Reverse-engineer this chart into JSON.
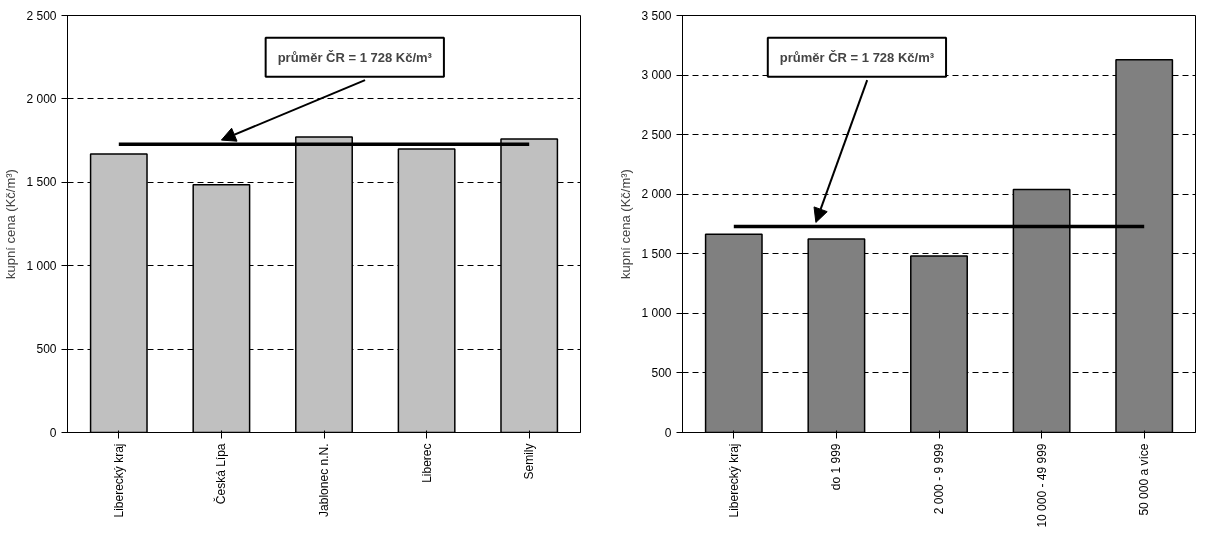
{
  "chart_data": [
    {
      "type": "bar",
      "categories": [
        "Liberecký kraj",
        "Česká Lípa",
        "Jablonec n.N.",
        "Liberec",
        "Semily"
      ],
      "values": [
        1669,
        1485,
        1772,
        1700,
        1760
      ],
      "color": "#c0c0c0",
      "ylabel": "kupní cena (Kč/m³)",
      "ylim": [
        0,
        2500
      ],
      "yticks": [
        0,
        500,
        {
          "value": 1000,
          "label": "1 000"
        },
        {
          "value": 1500,
          "label": "1 500"
        },
        {
          "value": 2000,
          "label": "2 000"
        },
        {
          "value": 2500,
          "label": "2 500"
        }
      ],
      "grid": "y",
      "ref_lines": [
        {
          "axis": "y",
          "value": 1728,
          "label": "průměr ČR = 1 728 Kč/m³",
          "color": "#000000"
        }
      ]
    },
    {
      "type": "bar",
      "categories": [
        "Liberecký kraj",
        "do 1 999",
        "2 000 - 9 999",
        "10 000 - 49 999",
        "50 000 a více"
      ],
      "values": [
        1663,
        1625,
        1482,
        2040,
        3129
      ],
      "color": "#808080",
      "ylabel": "kupní cena (Kč/m³)",
      "ylim": [
        0,
        3500
      ],
      "yticks": [
        0,
        500,
        {
          "value": 1000,
          "label": "1 000"
        },
        {
          "value": 1500,
          "label": "1 500"
        },
        {
          "value": 2000,
          "label": "2 000"
        },
        {
          "value": 2500,
          "label": "2 500"
        },
        {
          "value": 3000,
          "label": "3 000"
        },
        {
          "value": 3500,
          "label": "3 500"
        }
      ],
      "grid": "y",
      "ref_lines": [
        {
          "axis": "y",
          "value": 1728,
          "label": "průměr ČR = 1 728 Kč/m³",
          "color": "#000000"
        }
      ]
    }
  ]
}
